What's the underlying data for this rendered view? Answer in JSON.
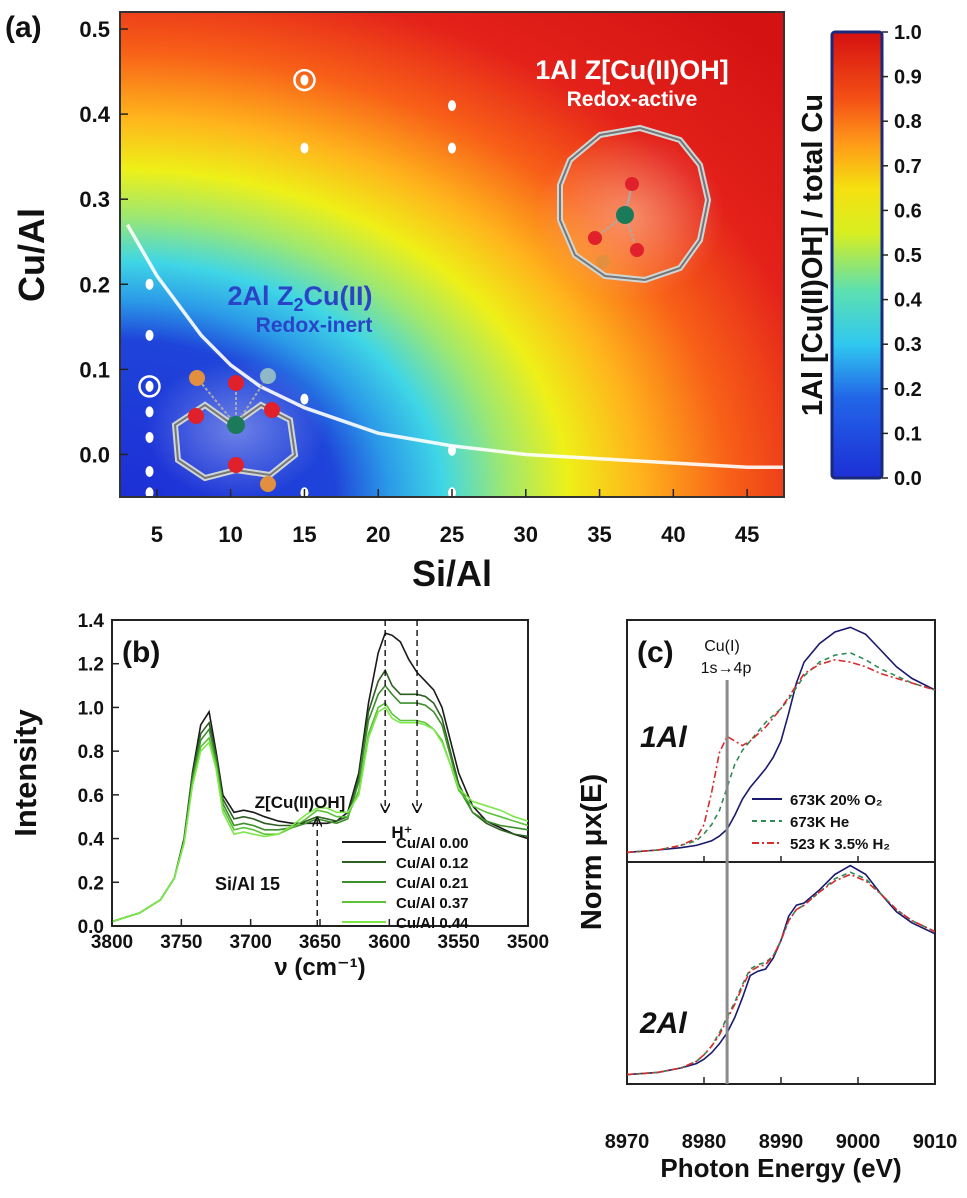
{
  "chart_data": [
    {
      "panel": "(a)",
      "type": "heatmap",
      "xlabel": "Si/Al",
      "ylabel": "Cu/Al",
      "xlim": [
        2.5,
        47.5
      ],
      "ylim": [
        -0.05,
        0.52
      ],
      "xticks": [
        5,
        10,
        15,
        20,
        25,
        30,
        35,
        40,
        45
      ],
      "yticks": [
        0.0,
        0.1,
        0.2,
        0.3,
        0.4,
        0.5
      ],
      "ytick_labels": [
        "0.0",
        "0.1",
        "0.2",
        "0.3",
        "0.4",
        "0.5"
      ],
      "colorbar": {
        "label": "1Al [Cu(II)OH] / total Cu",
        "range": [
          0,
          1
        ],
        "ticks": [
          "1.0",
          "0.9",
          "0.8",
          "0.7",
          "0.6",
          "0.5",
          "0.4",
          "0.3",
          "0.2",
          "0.1",
          "0.0"
        ]
      },
      "boundary_curve": {
        "x": [
          3,
          5,
          8,
          10,
          12,
          15,
          20,
          25,
          30,
          35,
          40,
          45,
          47.5
        ],
        "y": [
          0.27,
          0.21,
          0.14,
          0.105,
          0.08,
          0.055,
          0.025,
          0.01,
          0.0,
          -0.005,
          -0.01,
          -0.015,
          -0.015
        ]
      },
      "points": {
        "x": [
          4.5,
          4.5,
          4.5,
          4.5,
          4.5,
          4.5,
          4.5,
          15,
          15,
          15,
          15,
          25,
          25,
          25,
          25
        ],
        "y": [
          0.2,
          0.14,
          0.08,
          0.05,
          0.02,
          -0.02,
          -0.045,
          0.44,
          0.36,
          0.065,
          -0.045,
          0.41,
          0.36,
          0.005,
          -0.045
        ]
      },
      "circled_points": [
        {
          "x": 4.5,
          "y": 0.08
        },
        {
          "x": 15,
          "y": 0.44
        }
      ],
      "annotations": {
        "region_high_title": "1Al Z[Cu(II)OH]",
        "region_high_sub": "Redox-active",
        "region_low_prefix": "2Al Z",
        "region_low_subscript": "2",
        "region_low_suffix": "Cu(II)",
        "region_low_sub": "Redox-inert"
      }
    },
    {
      "panel": "(b)",
      "type": "line",
      "xlabel": "ν (cm⁻¹)",
      "ylabel": "Intensity",
      "xlim": [
        3800,
        3500
      ],
      "ylim": [
        0,
        1.4
      ],
      "xticks": [
        3800,
        3750,
        3700,
        3650,
        3600,
        3550,
        3500
      ],
      "yticks": [
        0.0,
        0.2,
        0.4,
        0.6,
        0.8,
        1.0,
        1.2,
        1.4
      ],
      "ytick_labels": [
        "0.0",
        "0.2",
        "0.4",
        "0.6",
        "0.8",
        "1.0",
        "1.2",
        "1.4"
      ],
      "x": [
        3800,
        3780,
        3765,
        3755,
        3748,
        3742,
        3736,
        3730,
        3725,
        3720,
        3712,
        3705,
        3698,
        3690,
        3680,
        3670,
        3660,
        3652,
        3645,
        3638,
        3630,
        3622,
        3615,
        3608,
        3603,
        3598,
        3592,
        3586,
        3580,
        3574,
        3568,
        3562,
        3556,
        3550,
        3540,
        3530,
        3520,
        3510,
        3500
      ],
      "series": [
        {
          "name": "Cu/Al 0.00",
          "color": "#1a1a1a",
          "values": [
            0.02,
            0.06,
            0.12,
            0.22,
            0.4,
            0.7,
            0.92,
            0.98,
            0.8,
            0.6,
            0.52,
            0.53,
            0.52,
            0.5,
            0.48,
            0.47,
            0.47,
            0.47,
            0.47,
            0.48,
            0.52,
            0.7,
            1.02,
            1.25,
            1.34,
            1.33,
            1.3,
            1.22,
            1.16,
            1.12,
            1.08,
            1.0,
            0.85,
            0.7,
            0.55,
            0.48,
            0.45,
            0.42,
            0.4
          ]
        },
        {
          "name": "Cu/Al 0.12",
          "color": "#2e5e22",
          "values": [
            0.02,
            0.06,
            0.12,
            0.22,
            0.4,
            0.69,
            0.88,
            0.93,
            0.78,
            0.58,
            0.49,
            0.5,
            0.49,
            0.47,
            0.46,
            0.46,
            0.48,
            0.5,
            0.49,
            0.48,
            0.5,
            0.68,
            0.98,
            1.12,
            1.17,
            1.1,
            1.06,
            1.06,
            1.06,
            1.05,
            1.02,
            0.95,
            0.8,
            0.65,
            0.52,
            0.47,
            0.44,
            0.42,
            0.41
          ]
        },
        {
          "name": "Cu/Al 0.21",
          "color": "#3d8f2b",
          "values": [
            0.02,
            0.06,
            0.12,
            0.22,
            0.39,
            0.67,
            0.85,
            0.9,
            0.76,
            0.56,
            0.46,
            0.47,
            0.46,
            0.44,
            0.44,
            0.45,
            0.47,
            0.49,
            0.48,
            0.47,
            0.49,
            0.66,
            0.94,
            1.06,
            1.1,
            1.06,
            1.02,
            1.02,
            1.02,
            1.01,
            0.98,
            0.92,
            0.78,
            0.63,
            0.52,
            0.48,
            0.46,
            0.45,
            0.44
          ]
        },
        {
          "name": "Cu/Al 0.37",
          "color": "#5cc23a",
          "values": [
            0.02,
            0.06,
            0.12,
            0.22,
            0.38,
            0.65,
            0.82,
            0.86,
            0.74,
            0.54,
            0.44,
            0.45,
            0.44,
            0.42,
            0.42,
            0.45,
            0.49,
            0.53,
            0.52,
            0.5,
            0.5,
            0.62,
            0.88,
            1.0,
            1.02,
            0.97,
            0.94,
            0.94,
            0.94,
            0.93,
            0.9,
            0.85,
            0.74,
            0.62,
            0.55,
            0.52,
            0.5,
            0.48,
            0.46
          ]
        },
        {
          "name": "Cu/Al 0.44",
          "color": "#7de84a",
          "values": [
            0.02,
            0.06,
            0.12,
            0.22,
            0.38,
            0.64,
            0.8,
            0.84,
            0.72,
            0.52,
            0.42,
            0.43,
            0.42,
            0.41,
            0.42,
            0.46,
            0.51,
            0.54,
            0.54,
            0.52,
            0.52,
            0.6,
            0.86,
            0.98,
            1.0,
            0.95,
            0.93,
            0.93,
            0.93,
            0.92,
            0.9,
            0.84,
            0.74,
            0.63,
            0.57,
            0.55,
            0.53,
            0.5,
            0.48
          ]
        }
      ],
      "annotations": {
        "zcu_label": "Z[Cu(II)OH]",
        "zcu_arrow_x": 3652,
        "h_label": "H⁺",
        "h_arrow_x": [
          3603,
          3580
        ],
        "sial_label": "Si/Al 15"
      }
    },
    {
      "panel": "(c)",
      "type": "line",
      "xlabel": "Photon Energy (eV)",
      "ylabel": "Norm μx(E)",
      "xlim": [
        8970,
        9010
      ],
      "xticks": [
        8970,
        8980,
        8990,
        9000,
        9010
      ],
      "vline_x": 8983,
      "vline_label_1": "Cu(I)",
      "vline_label_2": "1s→4p",
      "legend": [
        "673K 20% O₂",
        "673K He",
        "523 K 3.5% H₂"
      ],
      "subpanels": [
        {
          "label": "1Al",
          "x": [
            8970,
            8974,
            8977,
            8979,
            8980,
            8981,
            8982,
            8983,
            8984,
            8985,
            8986,
            8987,
            8988,
            8989,
            8990,
            8991,
            8992,
            8993,
            8995,
            8997,
            8999,
            9001,
            9003,
            9005,
            9007,
            9010
          ],
          "series": [
            {
              "name": "673K 20% O₂",
              "color": "#1a1a6e",
              "dash": "solid",
              "values": [
                0.02,
                0.03,
                0.04,
                0.05,
                0.06,
                0.07,
                0.09,
                0.12,
                0.18,
                0.25,
                0.3,
                0.34,
                0.38,
                0.43,
                0.5,
                0.62,
                0.75,
                0.84,
                0.92,
                0.97,
                0.99,
                0.96,
                0.89,
                0.82,
                0.77,
                0.72
              ]
            },
            {
              "name": "673K He",
              "color": "#2e8b57",
              "dash": "5,4",
              "values": [
                0.02,
                0.03,
                0.05,
                0.07,
                0.1,
                0.14,
                0.2,
                0.3,
                0.4,
                0.46,
                0.5,
                0.54,
                0.58,
                0.61,
                0.64,
                0.68,
                0.73,
                0.78,
                0.84,
                0.87,
                0.88,
                0.85,
                0.81,
                0.78,
                0.75,
                0.72
              ]
            },
            {
              "name": "523 K 3.5% H₂",
              "color": "#d62c2c",
              "dash": "7,3,2,3",
              "values": [
                0.02,
                0.03,
                0.05,
                0.08,
                0.14,
                0.28,
                0.45,
                0.52,
                0.5,
                0.48,
                0.5,
                0.53,
                0.56,
                0.6,
                0.64,
                0.69,
                0.74,
                0.79,
                0.83,
                0.85,
                0.84,
                0.82,
                0.79,
                0.77,
                0.75,
                0.72
              ]
            }
          ]
        },
        {
          "label": "2Al",
          "x": [
            8970,
            8974,
            8977,
            8979,
            8980,
            8981,
            8982,
            8983,
            8984,
            8985,
            8986,
            8987,
            8988,
            8989,
            8990,
            8991,
            8992,
            8993,
            8995,
            8997,
            8999,
            9001,
            9003,
            9005,
            9007,
            9010
          ],
          "series": [
            {
              "name": "673K 20% O₂",
              "color": "#1a1a6e",
              "dash": "solid",
              "values": [
                0.02,
                0.03,
                0.05,
                0.07,
                0.09,
                0.12,
                0.16,
                0.21,
                0.28,
                0.37,
                0.47,
                0.49,
                0.5,
                0.55,
                0.63,
                0.74,
                0.79,
                0.8,
                0.86,
                0.93,
                0.97,
                0.93,
                0.84,
                0.76,
                0.71,
                0.66
              ]
            },
            {
              "name": "673K He",
              "color": "#2e8b57",
              "dash": "5,4",
              "values": [
                0.02,
                0.03,
                0.05,
                0.08,
                0.11,
                0.15,
                0.21,
                0.28,
                0.35,
                0.43,
                0.5,
                0.52,
                0.53,
                0.56,
                0.63,
                0.72,
                0.77,
                0.79,
                0.85,
                0.91,
                0.94,
                0.91,
                0.84,
                0.77,
                0.72,
                0.67
              ]
            },
            {
              "name": "523 K 3.5% H₂",
              "color": "#d62c2c",
              "dash": "7,3,2,3",
              "values": [
                0.02,
                0.03,
                0.05,
                0.08,
                0.11,
                0.15,
                0.2,
                0.27,
                0.34,
                0.42,
                0.49,
                0.51,
                0.52,
                0.56,
                0.63,
                0.72,
                0.77,
                0.79,
                0.85,
                0.9,
                0.93,
                0.9,
                0.84,
                0.77,
                0.72,
                0.67
              ]
            }
          ]
        }
      ]
    }
  ],
  "panel_labels": {
    "a": "(a)",
    "b": "(b)",
    "c": "(c)"
  },
  "colors": {
    "blue": "#1f3fd0",
    "cyan": "#2fd0f0",
    "yellow": "#f2f000",
    "orange": "#ff8c1a",
    "red": "#e01410"
  }
}
